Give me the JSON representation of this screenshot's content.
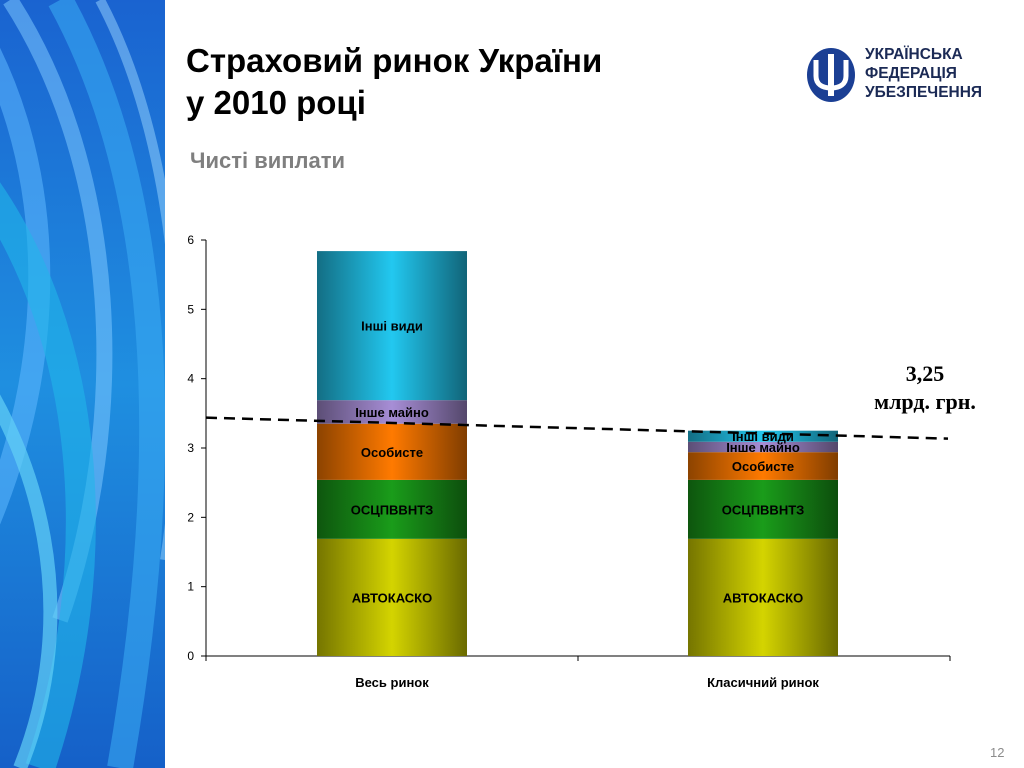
{
  "slide": {
    "title_line1": "Страховий ринок України",
    "title_line2": "у 2010 році",
    "subtitle": "Чисті виплати",
    "page_number": "12",
    "logo": {
      "line1": "УКРАЇНСЬКА",
      "line2": "ФЕДЕРАЦІЯ",
      "line3": "УБЕЗПЕЧЕННЯ",
      "icon": "trident-circle-icon",
      "color": "#1b3f94"
    }
  },
  "chart_data": {
    "type": "bar",
    "stacked": true,
    "categories": [
      "Весь ринок",
      "Класичний ринок"
    ],
    "ylim": [
      0,
      6
    ],
    "yticks": [
      0,
      1,
      2,
      3,
      4,
      5,
      6
    ],
    "series": [
      {
        "name": "АВТОКАСКО",
        "values": [
          1.69,
          1.69
        ],
        "color": "#d4d400"
      },
      {
        "name": "ОСЦПВВНТЗ",
        "values": [
          0.85,
          0.85
        ],
        "color": "#1a9c1a"
      },
      {
        "name": "Особисте",
        "values": [
          0.81,
          0.4
        ],
        "color": "#ff7a00"
      },
      {
        "name": "Інше майно",
        "values": [
          0.34,
          0.15
        ],
        "color": "#a78ed6"
      },
      {
        "name": "Інші види",
        "values": [
          2.15,
          0.16
        ],
        "color": "#22c8f0"
      }
    ],
    "annotation": {
      "line1": "3,25",
      "line2": "млрд. грн.",
      "value": 3.25
    },
    "grid": false
  }
}
